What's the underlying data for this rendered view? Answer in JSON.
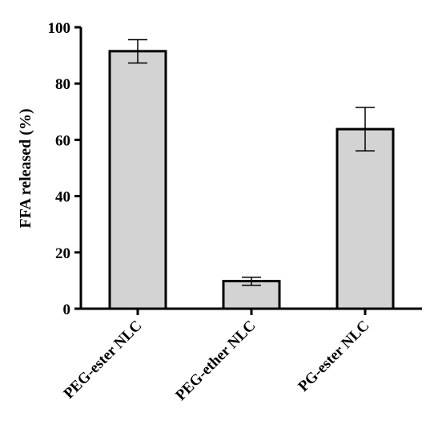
{
  "chart_data": {
    "type": "bar",
    "title": "",
    "xlabel": "",
    "ylabel": "FFA released (%)",
    "ylim": [
      0,
      100
    ],
    "yticks": [
      0,
      20,
      40,
      60,
      80,
      100
    ],
    "categories": [
      "PEG-ester NLC",
      "PEG-ether NLC",
      "PG-ester NLC"
    ],
    "values": [
      91.5,
      9.8,
      63.8
    ],
    "error_low": [
      87.3,
      8.3,
      56.1
    ],
    "error_high": [
      95.6,
      11.2,
      71.5
    ],
    "bar_color": "#d3d3d3",
    "edge_color": "#000000",
    "grid": false,
    "legend": "none"
  }
}
